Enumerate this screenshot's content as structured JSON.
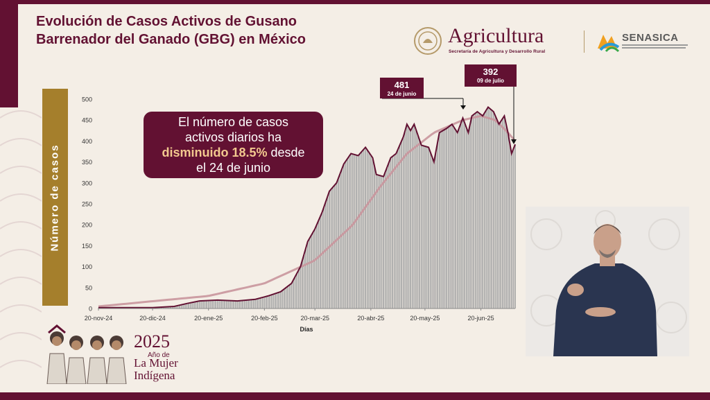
{
  "title_line1": "Evolución de Casos Activos de Gusano",
  "title_line2": "Barrenador del Ganado (GBG) en México",
  "agency_logo": {
    "name": "Agricultura",
    "subtitle": "Secretaría de Agricultura y Desarrollo Rural"
  },
  "partner_logo": {
    "name": "SENASICA",
    "subtitle": "SERVICIO NACIONAL DE SANIDAD, INOCUIDAD Y CALIDAD AGROALIMENTARIA"
  },
  "callout": {
    "line1": "El número de casos",
    "line2": "activos diarios ha",
    "highlight": "disminuido 18.5%",
    "line3_rest": " desde",
    "line4": "el 24 de junio"
  },
  "peaks": [
    {
      "value": "481",
      "date": "24 de junio"
    },
    {
      "value": "392",
      "date": "09 de julio"
    }
  ],
  "year_logo": {
    "year": "2025",
    "line1": "Año de",
    "line2": "La Mujer",
    "line3": "Indígena"
  },
  "colors": {
    "brand": "#621132",
    "gold": "#a57f2c",
    "trend": "#c9959c",
    "bars": "#a9a9a9"
  },
  "chart_data": {
    "type": "bar",
    "ylabel": "Número de casos",
    "xlabel": "Días",
    "ylim": [
      0,
      500
    ],
    "yticks": [
      0,
      50,
      100,
      150,
      200,
      250,
      300,
      350,
      400,
      450,
      500
    ],
    "xticks": [
      "20-nov-24",
      "20-dic-24",
      "20-ene-25",
      "20-feb-25",
      "20-mar-25",
      "20-abr-25",
      "20-may-25",
      "20-jun-25"
    ],
    "x_start": "2024-11-20",
    "x_end": "2025-07-09",
    "grid": false,
    "series": [
      {
        "type": "daily_bars_with_line",
        "points": [
          [
            "2024-11-20",
            2
          ],
          [
            "2024-12-01",
            2
          ],
          [
            "2024-12-20",
            2
          ],
          [
            "2025-01-01",
            5
          ],
          [
            "2025-01-08",
            12
          ],
          [
            "2025-01-15",
            18
          ],
          [
            "2025-01-25",
            20
          ],
          [
            "2025-02-05",
            18
          ],
          [
            "2025-02-15",
            22
          ],
          [
            "2025-02-22",
            30
          ],
          [
            "2025-03-01",
            40
          ],
          [
            "2025-03-07",
            60
          ],
          [
            "2025-03-12",
            100
          ],
          [
            "2025-03-16",
            160
          ],
          [
            "2025-03-20",
            190
          ],
          [
            "2025-03-24",
            230
          ],
          [
            "2025-03-28",
            280
          ],
          [
            "2025-04-01",
            300
          ],
          [
            "2025-04-05",
            345
          ],
          [
            "2025-04-09",
            370
          ],
          [
            "2025-04-13",
            365
          ],
          [
            "2025-04-17",
            385
          ],
          [
            "2025-04-21",
            360
          ],
          [
            "2025-04-23",
            320
          ],
          [
            "2025-04-27",
            315
          ],
          [
            "2025-05-01",
            360
          ],
          [
            "2025-05-04",
            370
          ],
          [
            "2025-05-08",
            410
          ],
          [
            "2025-05-10",
            440
          ],
          [
            "2025-05-12",
            425
          ],
          [
            "2025-05-14",
            440
          ],
          [
            "2025-05-18",
            390
          ],
          [
            "2025-05-22",
            385
          ],
          [
            "2025-05-25",
            350
          ],
          [
            "2025-05-28",
            420
          ],
          [
            "2025-06-01",
            430
          ],
          [
            "2025-06-04",
            440
          ],
          [
            "2025-06-07",
            420
          ],
          [
            "2025-06-10",
            455
          ],
          [
            "2025-06-13",
            420
          ],
          [
            "2025-06-15",
            460
          ],
          [
            "2025-06-18",
            470
          ],
          [
            "2025-06-21",
            460
          ],
          [
            "2025-06-24",
            481
          ],
          [
            "2025-06-27",
            470
          ],
          [
            "2025-06-30",
            440
          ],
          [
            "2025-07-03",
            460
          ],
          [
            "2025-07-05",
            420
          ],
          [
            "2025-07-07",
            370
          ],
          [
            "2025-07-09",
            392
          ]
        ]
      },
      {
        "type": "trend",
        "points": [
          [
            "2024-11-20",
            5
          ],
          [
            "2025-01-20",
            30
          ],
          [
            "2025-02-20",
            60
          ],
          [
            "2025-03-20",
            115
          ],
          [
            "2025-04-10",
            200
          ],
          [
            "2025-04-25",
            290
          ],
          [
            "2025-05-10",
            370
          ],
          [
            "2025-05-25",
            420
          ],
          [
            "2025-06-10",
            450
          ],
          [
            "2025-06-20",
            460
          ],
          [
            "2025-06-28",
            450
          ],
          [
            "2025-07-05",
            420
          ],
          [
            "2025-07-09",
            400
          ]
        ]
      }
    ]
  }
}
